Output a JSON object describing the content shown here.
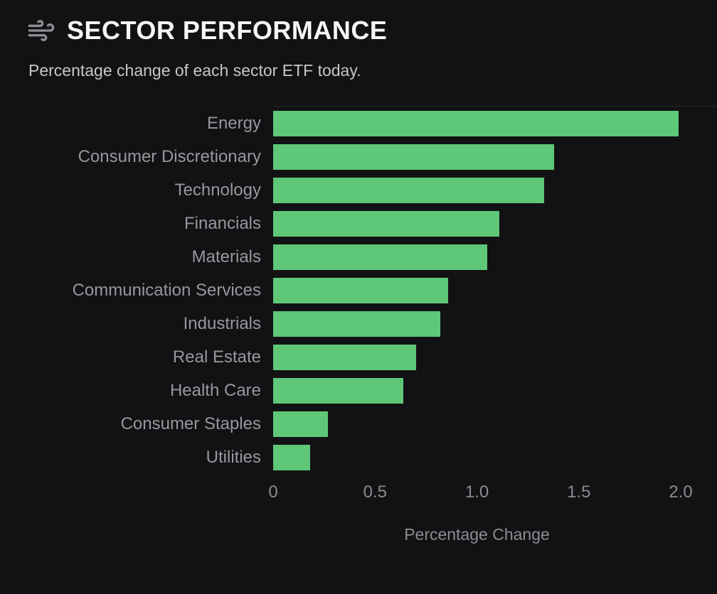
{
  "header": {
    "icon": "wind-icon",
    "title": "SECTOR PERFORMANCE",
    "subtitle": "Percentage change of each sector ETF today."
  },
  "colors": {
    "background": "#121214",
    "bar": "#5ec878",
    "title_text": "#f5f5f6",
    "subtitle_text": "#c7c7cb",
    "category_label": "#97979d",
    "tick_label": "#8b8b91"
  },
  "chart_data": {
    "type": "bar",
    "orientation": "horizontal",
    "title": "SECTOR PERFORMANCE",
    "subtitle": "Percentage change of each sector ETF today.",
    "categories": [
      "Energy",
      "Consumer Discretionary",
      "Technology",
      "Financials",
      "Materials",
      "Communication Services",
      "Industrials",
      "Real Estate",
      "Health Care",
      "Consumer Staples",
      "Utilities"
    ],
    "values": [
      1.99,
      1.38,
      1.33,
      1.11,
      1.05,
      0.86,
      0.82,
      0.7,
      0.64,
      0.27,
      0.18
    ],
    "xlabel": "Percentage Change",
    "ylabel": "",
    "xlim": [
      0,
      2.0
    ],
    "xticks": [
      "0",
      "0.5",
      "1.0",
      "1.5",
      "2.0"
    ],
    "grid": false,
    "legend": false,
    "bar_color": "#5ec878",
    "background": "#121214"
  }
}
